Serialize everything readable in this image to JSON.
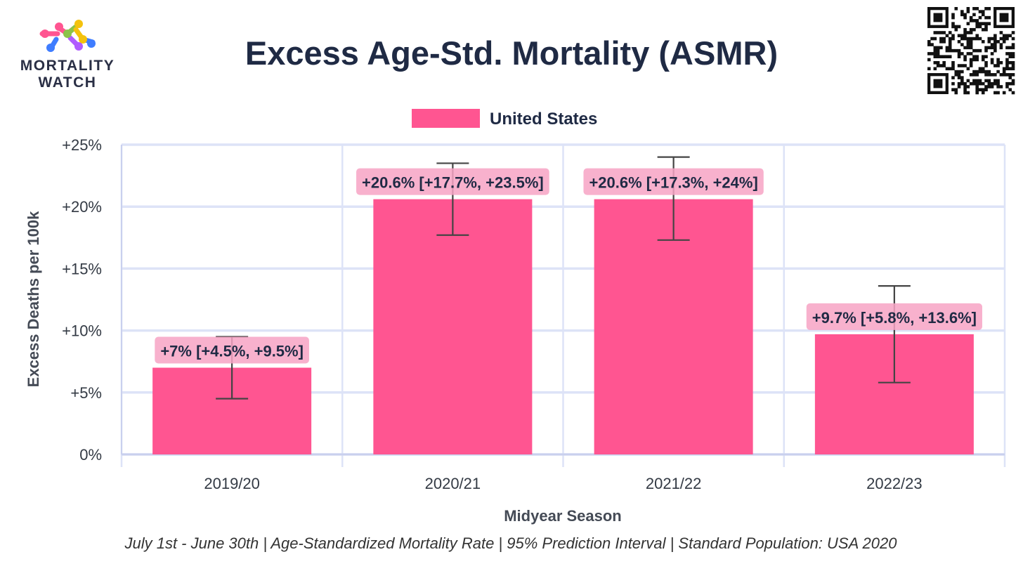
{
  "brand": {
    "logo_line1": "MORTALITY",
    "logo_line2": "WATCH",
    "qr": "qr-code"
  },
  "chart_data": {
    "type": "bar",
    "title": "Excess Age-Std. Mortality (ASMR)",
    "xlabel": "Midyear Season",
    "ylabel": "Excess Deaths per 100k",
    "ylim": [
      0,
      25
    ],
    "yticks": [
      0,
      5,
      10,
      15,
      20,
      25
    ],
    "ytick_labels": [
      "0%",
      "+5%",
      "+10%",
      "+15%",
      "+20%",
      "+25%"
    ],
    "categories": [
      "2019/20",
      "2020/21",
      "2021/22",
      "2022/23"
    ],
    "series": [
      {
        "name": "United States",
        "color": "#ff5591",
        "values": [
          7.0,
          20.6,
          20.6,
          9.7
        ],
        "lower": [
          4.5,
          17.7,
          17.3,
          5.8
        ],
        "upper": [
          9.5,
          23.5,
          24.0,
          13.6
        ],
        "labels": [
          "+7% [+4.5%, +9.5%]",
          "+20.6% [+17.7%, +23.5%]",
          "+20.6% [+17.3%, +24%]",
          "+9.7% [+5.8%, +13.6%]"
        ]
      }
    ],
    "grid": true,
    "legend": "top-center",
    "footnote": "July 1st - June 30th | Age-Standardized Mortality Rate | 95% Prediction Interval | Standard Population: USA 2020"
  },
  "colors": {
    "title": "#1f2a44",
    "grid": "#dde3f7",
    "bar": "#ff5591",
    "label_bg": "#f7a3c4",
    "errorbar": "#444444"
  }
}
